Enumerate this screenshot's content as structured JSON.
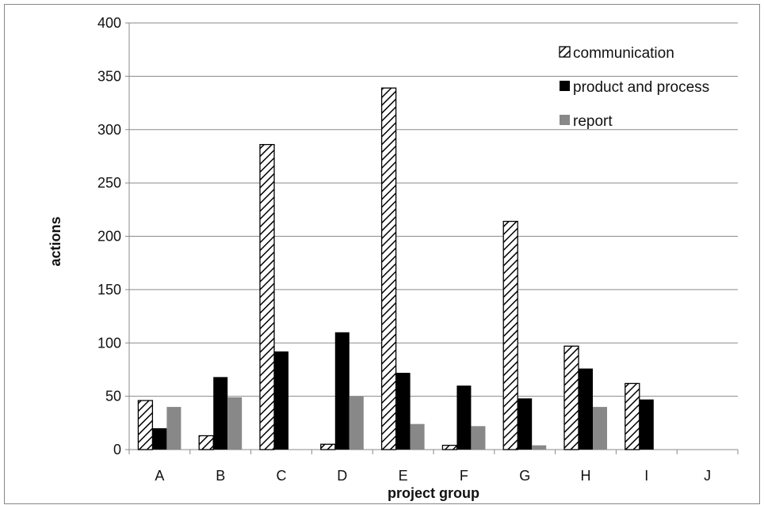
{
  "chart_data": {
    "type": "bar",
    "title": "",
    "xlabel": "project group",
    "ylabel": "actions",
    "ylim": [
      0,
      400
    ],
    "yticks": [
      0,
      50,
      100,
      150,
      200,
      250,
      300,
      350,
      400
    ],
    "grid": true,
    "legend_position": "top-right",
    "categories": [
      "A",
      "B",
      "C",
      "D",
      "E",
      "F",
      "G",
      "H",
      "I",
      "J"
    ],
    "series": [
      {
        "name": "communication",
        "fill": "hatched",
        "color": "#000000",
        "values": [
          46,
          13,
          286,
          5,
          339,
          4,
          214,
          97,
          62,
          0
        ]
      },
      {
        "name": "product and process",
        "fill": "solid",
        "color": "#000000",
        "values": [
          20,
          68,
          92,
          110,
          72,
          60,
          48,
          76,
          47,
          0
        ]
      },
      {
        "name": "report",
        "fill": "solid",
        "color": "#888888",
        "values": [
          40,
          49,
          0,
          50,
          24,
          22,
          4,
          40,
          0,
          0
        ]
      }
    ]
  }
}
